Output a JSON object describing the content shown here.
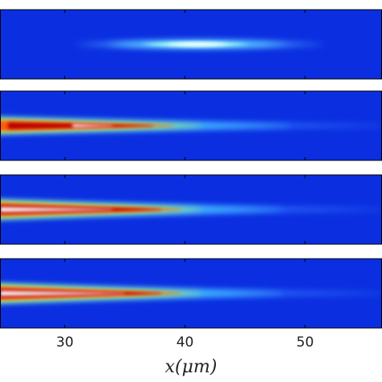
{
  "chart_data": {
    "type": "heatmap",
    "xlabel": "x(μm)",
    "xlim": [
      24.6,
      56.4
    ],
    "xticks": [
      30,
      40,
      50
    ],
    "panels": 4
  }
}
